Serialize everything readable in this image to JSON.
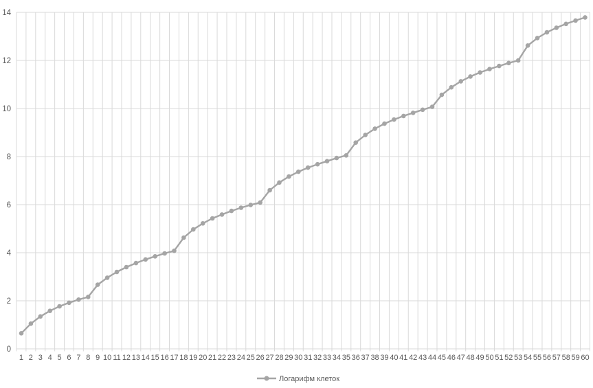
{
  "chart_data": {
    "type": "line",
    "title": "",
    "xlabel": "",
    "ylabel": "",
    "categories": [
      "1",
      "2",
      "3",
      "4",
      "5",
      "6",
      "7",
      "8",
      "9",
      "10",
      "11",
      "12",
      "13",
      "14",
      "15",
      "16",
      "17",
      "18",
      "19",
      "20",
      "21",
      "22",
      "23",
      "24",
      "25",
      "26",
      "27",
      "28",
      "29",
      "30",
      "31",
      "32",
      "33",
      "34",
      "35",
      "36",
      "37",
      "38",
      "39",
      "40",
      "41",
      "42",
      "43",
      "44",
      "45",
      "46",
      "47",
      "48",
      "49",
      "50",
      "51",
      "52",
      "53",
      "54",
      "55",
      "56",
      "57",
      "58",
      "59",
      "60"
    ],
    "series": [
      {
        "name": "Логарифм клеток",
        "values": [
          0.65,
          1.05,
          1.35,
          1.58,
          1.77,
          1.92,
          2.05,
          2.16,
          2.67,
          2.96,
          3.2,
          3.4,
          3.57,
          3.72,
          3.85,
          3.97,
          4.08,
          4.63,
          4.97,
          5.22,
          5.43,
          5.59,
          5.74,
          5.87,
          5.99,
          6.09,
          6.6,
          6.92,
          7.17,
          7.37,
          7.54,
          7.68,
          7.81,
          7.94,
          8.05,
          8.58,
          8.9,
          9.16,
          9.37,
          9.54,
          9.69,
          9.82,
          9.95,
          10.07,
          10.57,
          10.88,
          11.13,
          11.33,
          11.5,
          11.64,
          11.77,
          11.89,
          12.0,
          12.62,
          12.93,
          13.17,
          13.36,
          13.52,
          13.66,
          13.79
        ]
      }
    ],
    "ylim": [
      0,
      14
    ],
    "yticks": [
      0,
      2,
      4,
      6,
      8,
      10,
      12,
      14
    ],
    "grid": true,
    "marker": "circle",
    "legend_position": "bottom"
  },
  "colors": {
    "series": "#a5a5a5",
    "gridline": "#d9d9d9",
    "axis_text": "#595959",
    "background": "#ffffff"
  }
}
